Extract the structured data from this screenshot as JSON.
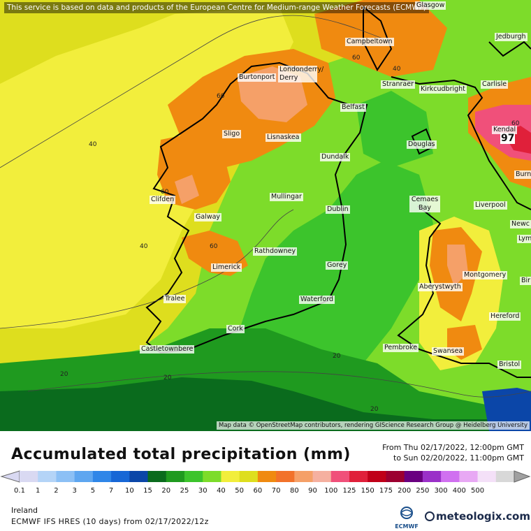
{
  "map": {
    "disclaimer": "This service is based on data and products of the European Centre for Medium-range Weather Forecasts (ECMWF)",
    "attribution": "Map data © OpenStreetMap contributors, rendering GIScience Research Group @ Heidelberg University",
    "peak_value": "97",
    "cities": {
      "glasgow": "Glasgow",
      "jedburgh": "Jedburgh",
      "campbeltown": "Campbeltown",
      "burtonport": "Burtonport",
      "londonderry": "Londonderry/ Derry",
      "stranraer": "Stranraer",
      "kirkcudbright": "Kirkcudbright",
      "carlisle": "Carlisle",
      "belfast": "Belfast",
      "kendal": "Kendal",
      "sligo": "Sligo",
      "lisnaskea": "Lisnaskea",
      "douglas": "Douglas",
      "dundalk": "Dundalk",
      "burnley": "Burn",
      "clifden": "Clifden",
      "mullingar": "Mullingar",
      "cemaes_bay": "Cemaes Bay",
      "dublin": "Dublin",
      "liverpool": "Liverpool",
      "galway": "Galway",
      "newcastle": "Newc",
      "lyme": "Lym",
      "rathdowney": "Rathdowney",
      "limerick": "Limerick",
      "gorey": "Gorey",
      "montgomery": "Montgomery",
      "birmingham": "Bir",
      "aberystwyth": "Aberystwyth",
      "tralee": "Tralee",
      "waterford": "Waterford",
      "hereford": "Hereford",
      "cork": "Cork",
      "pembroke": "Pembroke",
      "castletownbere": "Castletownbere",
      "swansea": "Swansea",
      "bristol": "Bristol"
    },
    "contour_labels": [
      "60",
      "60",
      "40",
      "60",
      "60",
      "40",
      "20",
      "20",
      "20",
      "20",
      "40",
      "60"
    ]
  },
  "legend": {
    "title": "Accumulated total precipitation (mm)",
    "period_from": "From Thu 02/17/2022, 12:00pm GMT",
    "period_to": "to Sun 02/20/2022, 11:00pm GMT",
    "ticks": [
      "0.1",
      "1",
      "2",
      "3",
      "5",
      "7",
      "10",
      "15",
      "20",
      "25",
      "30",
      "40",
      "50",
      "60",
      "70",
      "80",
      "90",
      "100",
      "125",
      "150",
      "175",
      "200",
      "250",
      "300",
      "400",
      "500"
    ],
    "colors": [
      "#d9d9f2",
      "#b4d4f7",
      "#8cc0f5",
      "#5ea6f0",
      "#2f86e8",
      "#1767d6",
      "#0b46a8",
      "#0a6b1d",
      "#1f9a1f",
      "#3cc42c",
      "#7ddc2a",
      "#f2ee3c",
      "#dede1e",
      "#f08a10",
      "#f2722a",
      "#f5a068",
      "#f5b0a0",
      "#f0507a",
      "#e0203a",
      "#c00018",
      "#9c0030",
      "#6a0080",
      "#9a30c8",
      "#d070f0",
      "#e8a8f4",
      "#f4e0f8",
      "#d8d8d8"
    ],
    "region": "Ireland",
    "model": "ECMWF IFS HRES (10 days) from 02/17/2022/12z",
    "ecmwf_label": "ECMWF",
    "brand": "meteologix.com"
  }
}
